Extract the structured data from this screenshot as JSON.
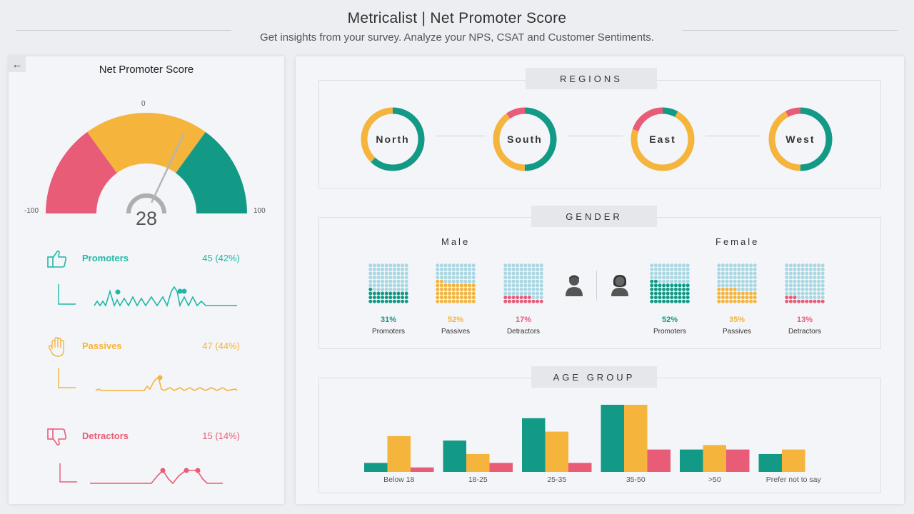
{
  "header": {
    "title": "Metricalist | Net Promoter Score",
    "subtitle": "Get insights from your survey. Analyze your NPS, CSAT and Customer Sentiments."
  },
  "nav": {
    "back_icon": "arrow-left-icon",
    "back_glyph": "←"
  },
  "nps": {
    "title": "Net Promoter Score",
    "score": "28",
    "score_value": 28,
    "min_label": "-100",
    "max_label": "100",
    "mid_label": "0",
    "zones": [
      {
        "name": "detractor-zone",
        "from": -100,
        "to": -40,
        "color": "#e85c78"
      },
      {
        "name": "passive-zone",
        "from": -40,
        "to": 40,
        "color": "#f5b43c"
      },
      {
        "name": "promoter-zone",
        "from": 40,
        "to": 100,
        "color": "#139a87"
      }
    ]
  },
  "metrics": [
    {
      "key": "promoters",
      "label": "Promoters",
      "value": "45 (42%)",
      "color": "#1fb8a6",
      "icon": "thumbs-up-icon"
    },
    {
      "key": "passives",
      "label": "Passives",
      "value": "47 (44%)",
      "color": "#f5b43c",
      "icon": "hand-icon"
    },
    {
      "key": "detractors",
      "label": "Detractors",
      "value": "15 (14%)",
      "color": "#e85c78",
      "icon": "thumbs-down-icon"
    }
  ],
  "colors": {
    "promoter": "#139a87",
    "passive": "#f5b43c",
    "detractor": "#e85c78",
    "empty": "#a9d8e3"
  },
  "regions": {
    "tag": "REGIONS",
    "items": [
      {
        "name": "North",
        "promoter": 0.62,
        "passive": 0.38,
        "detractor": 0.0
      },
      {
        "name": "South",
        "promoter": 0.5,
        "passive": 0.4,
        "detractor": 0.1
      },
      {
        "name": "East",
        "promoter": 0.08,
        "passive": 0.72,
        "detractor": 0.2
      },
      {
        "name": "West",
        "promoter": 0.5,
        "passive": 0.42,
        "detractor": 0.08
      }
    ]
  },
  "gender": {
    "tag": "GENDER",
    "male": {
      "label": "Male",
      "stats": [
        {
          "key": "promoter",
          "pct": "31%",
          "value": 31,
          "label": "Promoters"
        },
        {
          "key": "passive",
          "pct": "52%",
          "value": 52,
          "label": "Passives"
        },
        {
          "key": "detractor",
          "pct": "17%",
          "value": 17,
          "label": "Detractors"
        }
      ]
    },
    "female": {
      "label": "Female",
      "stats": [
        {
          "key": "promoter",
          "pct": "52%",
          "value": 52,
          "label": "Promoters"
        },
        {
          "key": "passive",
          "pct": "35%",
          "value": 35,
          "label": "Passives"
        },
        {
          "key": "detractor",
          "pct": "13%",
          "value": 13,
          "label": "Detractors"
        }
      ]
    }
  },
  "chart_data": {
    "type": "bar",
    "title": "AGE GROUP",
    "categories": [
      "Below 18",
      "18-25",
      "25-35",
      "35-50",
      ">50",
      "Prefer not to say"
    ],
    "series": [
      {
        "key": "promoter",
        "values": [
          2,
          7,
          12,
          15,
          5,
          4
        ]
      },
      {
        "key": "passive",
        "values": [
          8,
          4,
          9,
          15,
          6,
          5
        ]
      },
      {
        "key": "detractor",
        "values": [
          1,
          2,
          2,
          5,
          5,
          0
        ]
      }
    ],
    "ylim": [
      0,
      15
    ],
    "grid": false,
    "legend": "none"
  }
}
